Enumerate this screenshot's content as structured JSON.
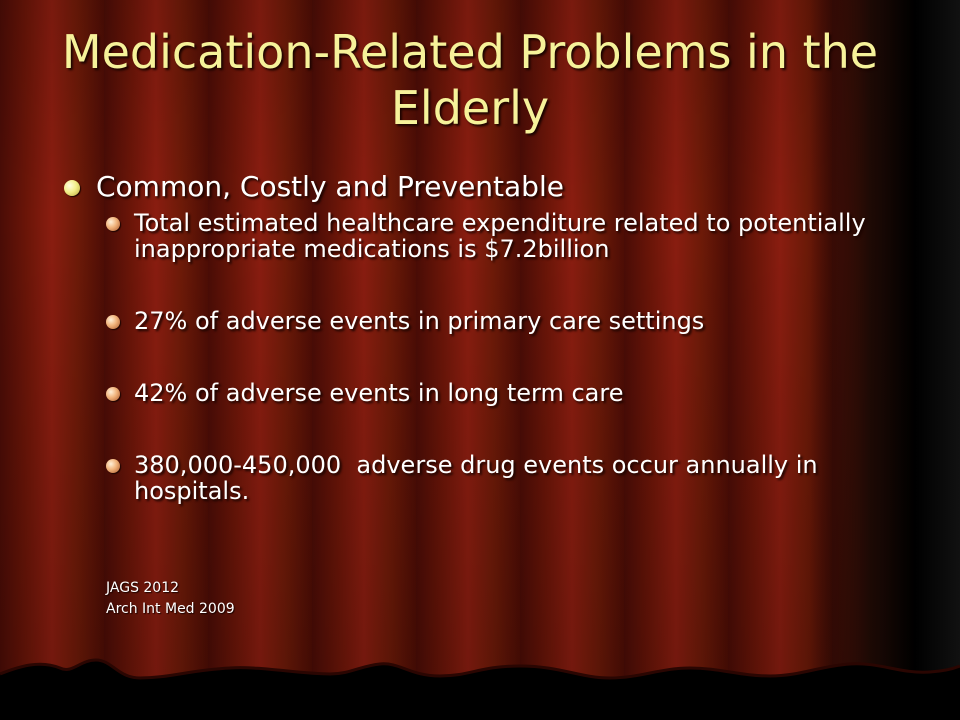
{
  "slide": {
    "title": "Medication-Related Problems in the Elderly",
    "main_bullet": "Common, Costly and Preventable",
    "sub_bullets": [
      "Total estimated healthcare expenditure related to potentially inappropriate medications is $7.2billion",
      "27% of adverse events in primary care settings",
      "42% of adverse events in long term care",
      "380,000-450,000  adverse drug events occur annually in hospitals."
    ],
    "references": [
      "JAGS 2012",
      "Arch Int Med 2009"
    ]
  },
  "colors": {
    "title": "#f6f29a",
    "body_text": "#ffffff",
    "curtain_red": "#8a1d10",
    "curtain_dark": "#4a0c06"
  },
  "icons": {
    "main_bullet": "yellow-sphere-bullet-icon",
    "sub_bullet": "orange-sphere-bullet-icon"
  }
}
